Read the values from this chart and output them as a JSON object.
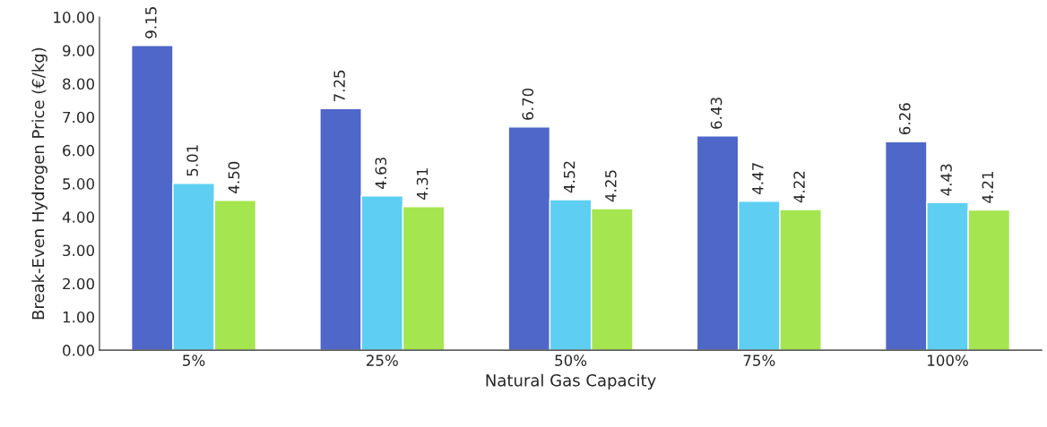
{
  "chart_data": {
    "type": "bar",
    "xlabel": "Natural Gas Capacity",
    "ylabel": "Break-Even Hydrogen Price (€/kg)",
    "categories": [
      "5%",
      "25%",
      "50%",
      "75%",
      "100%"
    ],
    "series": [
      {
        "color": "#4f67c9",
        "values": [
          9.15,
          7.25,
          6.7,
          6.43,
          6.26
        ],
        "value_labels": [
          "9.15",
          "7.25",
          "6.70",
          "6.43",
          "6.26"
        ]
      },
      {
        "color": "#5ecff2",
        "values": [
          5.01,
          4.63,
          4.52,
          4.47,
          4.43
        ],
        "value_labels": [
          "5.01",
          "4.63",
          "4.52",
          "4.47",
          "4.43"
        ]
      },
      {
        "color": "#a5e550",
        "values": [
          4.5,
          4.31,
          4.25,
          4.22,
          4.21
        ],
        "value_labels": [
          "4.50",
          "4.31",
          "4.25",
          "4.22",
          "4.21"
        ]
      }
    ],
    "ylim": [
      0,
      10
    ],
    "yticks": [
      {
        "value": 0,
        "label": "0.00"
      },
      {
        "value": 1,
        "label": "1.00"
      },
      {
        "value": 2,
        "label": "2.00"
      },
      {
        "value": 3,
        "label": "3.00"
      },
      {
        "value": 4,
        "label": "4.00"
      },
      {
        "value": 5,
        "label": "5.00"
      },
      {
        "value": 6,
        "label": "6.00"
      },
      {
        "value": 7,
        "label": "7.00"
      },
      {
        "value": 8,
        "label": "8.00"
      },
      {
        "value": 9,
        "label": "9.00"
      },
      {
        "value": 10,
        "label": "10.00"
      }
    ],
    "grid": false,
    "legend": false
  }
}
